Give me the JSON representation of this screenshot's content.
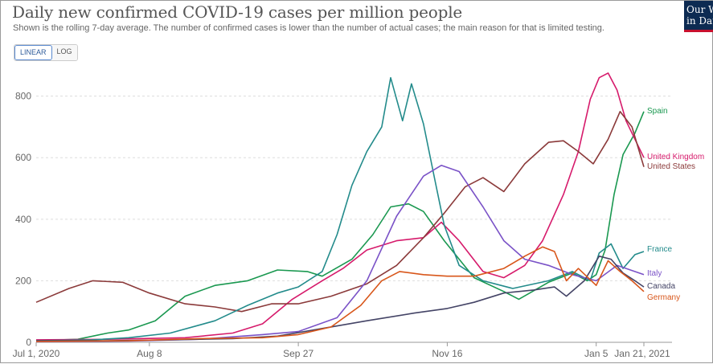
{
  "header": {
    "title": "Daily new confirmed COVID-19 cases per million people",
    "subtitle": "Shown is the rolling 7-day average. The number of confirmed cases is lower than the number of actual cases; the main reason for that is limited testing.",
    "logo_line1": "Our World",
    "logo_line2": "in Data"
  },
  "scale_toggle": {
    "linear_label": "LINEAR",
    "log_label": "LOG",
    "selected": "LINEAR"
  },
  "colors": {
    "Spain": "#1a9850",
    "United Kingdom": "#d61a6b",
    "United States": "#8b3a3a",
    "France": "#238b8b",
    "Italy": "#7a52c7",
    "Canada": "#444466",
    "Germany": "#d8561a",
    "gridline": "#dddddd",
    "axis_text": "#666666"
  },
  "chart_data": {
    "type": "line",
    "title": "Daily new confirmed COVID-19 cases per million people",
    "ylim": [
      0,
      880
    ],
    "yticks": [
      0,
      200,
      400,
      600,
      800
    ],
    "x_start": "Jul 1, 2020",
    "x_end": "Jan 21, 2021",
    "xtick_labels": [
      "Jul 1, 2020",
      "Aug 8",
      "Sep 27",
      "Nov 16",
      "Jan 5",
      "Jan 21, 2021"
    ],
    "xtick_dates": [
      "2020-07-01",
      "2020-08-08",
      "2020-09-27",
      "2020-11-16",
      "2021-01-05",
      "2021-01-21"
    ],
    "grid": "horizontal",
    "legend": "inline labels at right end",
    "series": [
      {
        "name": "Spain",
        "x": [
          "2020-07-01",
          "2020-07-15",
          "2020-07-25",
          "2020-08-01",
          "2020-08-10",
          "2020-08-20",
          "2020-08-30",
          "2020-09-10",
          "2020-09-20",
          "2020-09-30",
          "2020-10-05",
          "2020-10-15",
          "2020-10-22",
          "2020-10-28",
          "2020-11-03",
          "2020-11-08",
          "2020-11-15",
          "2020-11-25",
          "2020-12-05",
          "2020-12-10",
          "2020-12-20",
          "2020-12-28",
          "2021-01-02",
          "2021-01-05",
          "2021-01-08",
          "2021-01-11",
          "2021-01-14",
          "2021-01-18",
          "2021-01-21"
        ],
        "y": [
          5,
          10,
          30,
          40,
          70,
          150,
          185,
          200,
          235,
          230,
          215,
          270,
          350,
          440,
          450,
          425,
          330,
          210,
          165,
          140,
          195,
          225,
          200,
          220,
          300,
          480,
          610,
          680,
          750
        ]
      },
      {
        "name": "United Kingdom",
        "x": [
          "2020-07-01",
          "2020-07-25",
          "2020-08-20",
          "2020-09-05",
          "2020-09-15",
          "2020-09-25",
          "2020-10-05",
          "2020-10-12",
          "2020-10-20",
          "2020-10-30",
          "2020-11-08",
          "2020-11-14",
          "2020-11-20",
          "2020-11-28",
          "2020-12-05",
          "2020-12-12",
          "2020-12-18",
          "2020-12-25",
          "2020-12-30",
          "2021-01-03",
          "2021-01-06",
          "2021-01-09",
          "2021-01-12",
          "2021-01-15",
          "2021-01-18",
          "2021-01-21"
        ],
        "y": [
          8,
          10,
          15,
          30,
          60,
          140,
          200,
          240,
          300,
          330,
          340,
          390,
          330,
          230,
          210,
          250,
          330,
          480,
          620,
          790,
          860,
          875,
          820,
          720,
          660,
          600
        ]
      },
      {
        "name": "United States",
        "x": [
          "2020-07-01",
          "2020-07-12",
          "2020-07-20",
          "2020-07-30",
          "2020-08-08",
          "2020-08-20",
          "2020-08-30",
          "2020-09-08",
          "2020-09-18",
          "2020-09-27",
          "2020-10-08",
          "2020-10-20",
          "2020-10-30",
          "2020-11-08",
          "2020-11-15",
          "2020-11-22",
          "2020-11-28",
          "2020-12-05",
          "2020-12-12",
          "2020-12-20",
          "2020-12-25",
          "2020-12-30",
          "2021-01-04",
          "2021-01-09",
          "2021-01-13",
          "2021-01-17",
          "2021-01-21"
        ],
        "y": [
          130,
          175,
          200,
          195,
          160,
          125,
          115,
          100,
          125,
          125,
          150,
          190,
          250,
          340,
          420,
          505,
          535,
          490,
          580,
          650,
          655,
          620,
          580,
          660,
          750,
          700,
          570
        ]
      },
      {
        "name": "France",
        "x": [
          "2020-07-01",
          "2020-07-20",
          "2020-08-01",
          "2020-08-15",
          "2020-08-30",
          "2020-09-10",
          "2020-09-20",
          "2020-09-27",
          "2020-10-05",
          "2020-10-10",
          "2020-10-15",
          "2020-10-20",
          "2020-10-25",
          "2020-10-28",
          "2020-11-01",
          "2020-11-04",
          "2020-11-08",
          "2020-11-12",
          "2020-11-15",
          "2020-11-20",
          "2020-11-28",
          "2020-12-08",
          "2020-12-20",
          "2020-12-28",
          "2021-01-03",
          "2021-01-06",
          "2021-01-10",
          "2021-01-14",
          "2021-01-18",
          "2021-01-21"
        ],
        "y": [
          5,
          8,
          15,
          30,
          70,
          120,
          160,
          180,
          230,
          350,
          510,
          620,
          700,
          860,
          720,
          840,
          710,
          520,
          380,
          250,
          200,
          175,
          200,
          230,
          200,
          290,
          320,
          240,
          285,
          295
        ]
      },
      {
        "name": "Italy",
        "x": [
          "2020-07-01",
          "2020-08-01",
          "2020-08-25",
          "2020-09-15",
          "2020-09-27",
          "2020-10-10",
          "2020-10-20",
          "2020-10-30",
          "2020-11-08",
          "2020-11-14",
          "2020-11-20",
          "2020-11-28",
          "2020-12-05",
          "2020-12-12",
          "2020-12-20",
          "2020-12-28",
          "2021-01-05",
          "2021-01-12",
          "2021-01-21"
        ],
        "y": [
          2,
          4,
          10,
          25,
          35,
          80,
          200,
          410,
          540,
          575,
          555,
          440,
          330,
          270,
          250,
          220,
          200,
          250,
          220
        ]
      },
      {
        "name": "Canada",
        "x": [
          "2020-07-01",
          "2020-07-25",
          "2020-08-15",
          "2020-09-05",
          "2020-09-20",
          "2020-10-05",
          "2020-10-20",
          "2020-11-05",
          "2020-11-16",
          "2020-11-25",
          "2020-12-05",
          "2020-12-15",
          "2020-12-22",
          "2020-12-26",
          "2021-01-01",
          "2021-01-06",
          "2021-01-10",
          "2021-01-14",
          "2021-01-18",
          "2021-01-21"
        ],
        "y": [
          5,
          5,
          8,
          12,
          20,
          45,
          70,
          95,
          110,
          130,
          160,
          170,
          180,
          150,
          200,
          280,
          270,
          225,
          200,
          180
        ]
      },
      {
        "name": "Germany",
        "x": [
          "2020-07-01",
          "2020-08-01",
          "2020-08-25",
          "2020-09-15",
          "2020-09-27",
          "2020-10-08",
          "2020-10-18",
          "2020-10-25",
          "2020-10-31",
          "2020-11-08",
          "2020-11-16",
          "2020-11-25",
          "2020-12-05",
          "2020-12-12",
          "2020-12-18",
          "2020-12-22",
          "2020-12-26",
          "2020-12-30",
          "2021-01-05",
          "2021-01-09",
          "2021-01-13",
          "2021-01-17",
          "2021-01-21"
        ],
        "y": [
          3,
          5,
          12,
          15,
          25,
          50,
          120,
          200,
          230,
          220,
          215,
          215,
          240,
          280,
          310,
          295,
          200,
          240,
          185,
          265,
          230,
          200,
          165
        ]
      }
    ]
  }
}
